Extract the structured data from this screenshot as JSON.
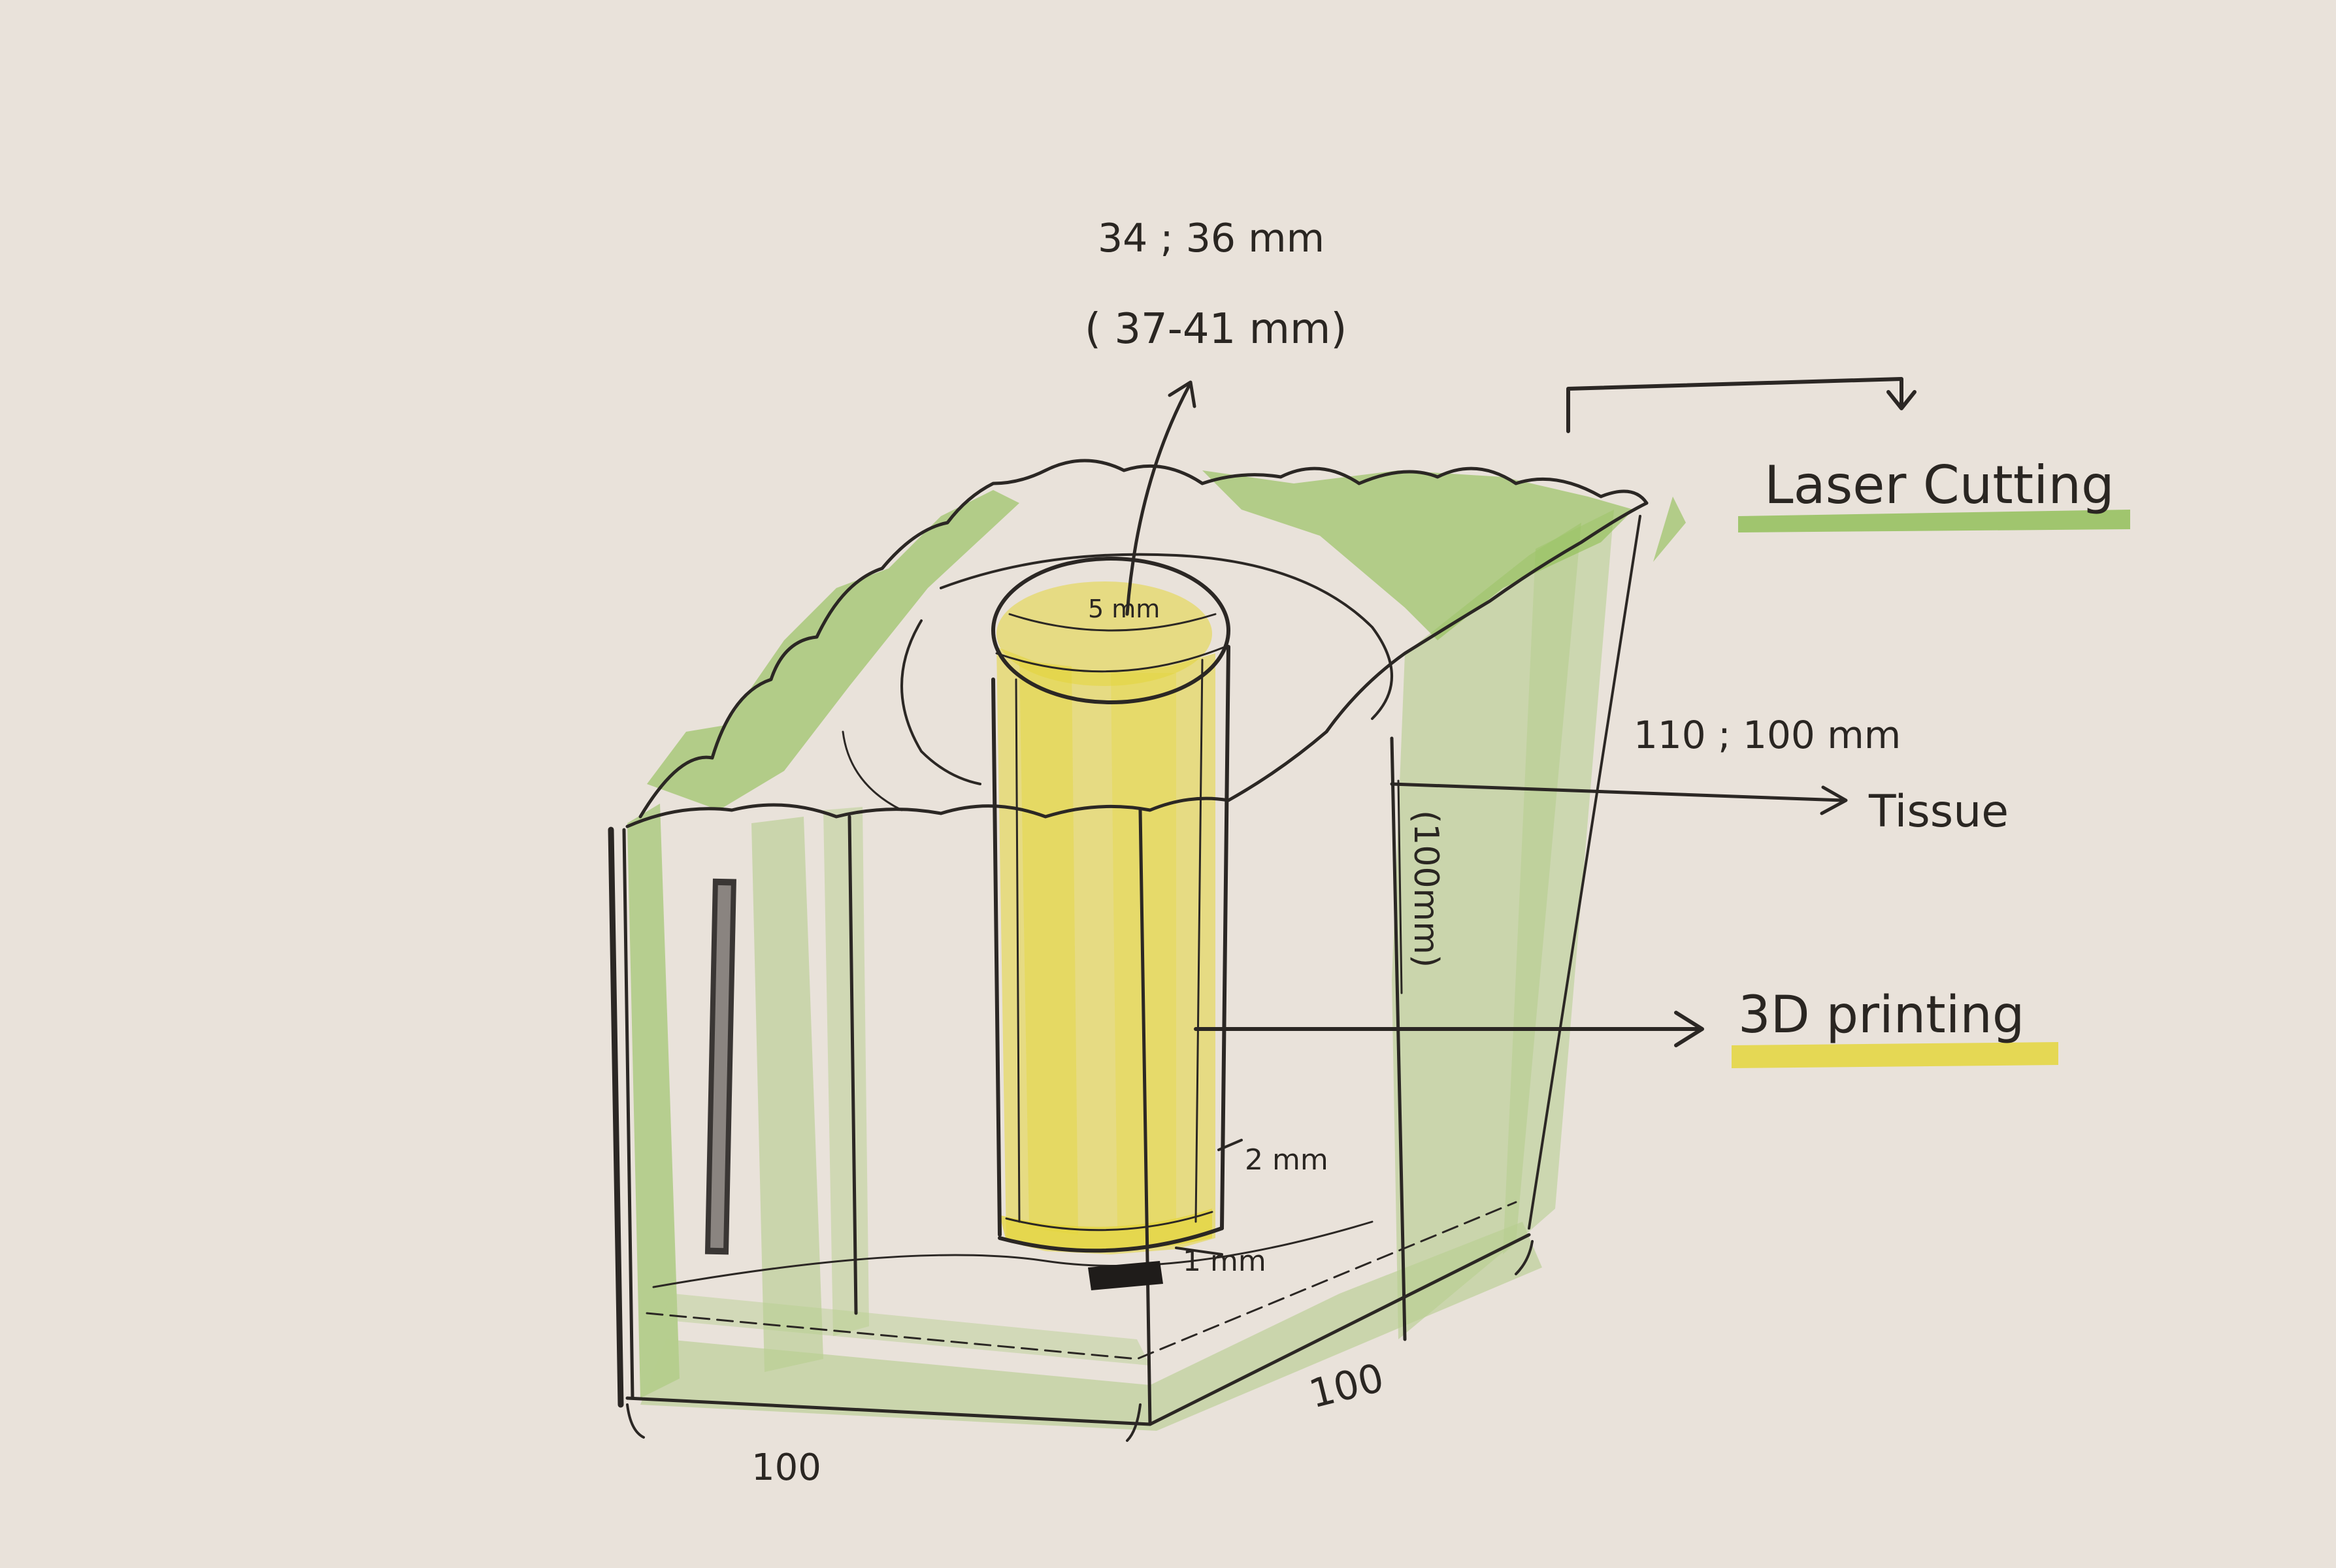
{
  "colors": {
    "paper": "#e9e2da",
    "pencil": "#2b2724",
    "green_pencil": "#8dbe52",
    "yellow_pencil": "#e4d63c"
  },
  "labels": {
    "diameter_top": "34 ; 36 mm",
    "diameter_range": "( 37-41 mm)",
    "inner_top": "5 mm",
    "box_height": "110 ; 100 mm",
    "box_height_vertical": "(100mm)",
    "wall_thickness": "2 mm",
    "base_gap": "1 mm",
    "width_front": "100",
    "depth_side": "100",
    "laser_cutting": "Laser Cutting",
    "tissue": "Tissue",
    "printing_3d": "3D printing"
  }
}
